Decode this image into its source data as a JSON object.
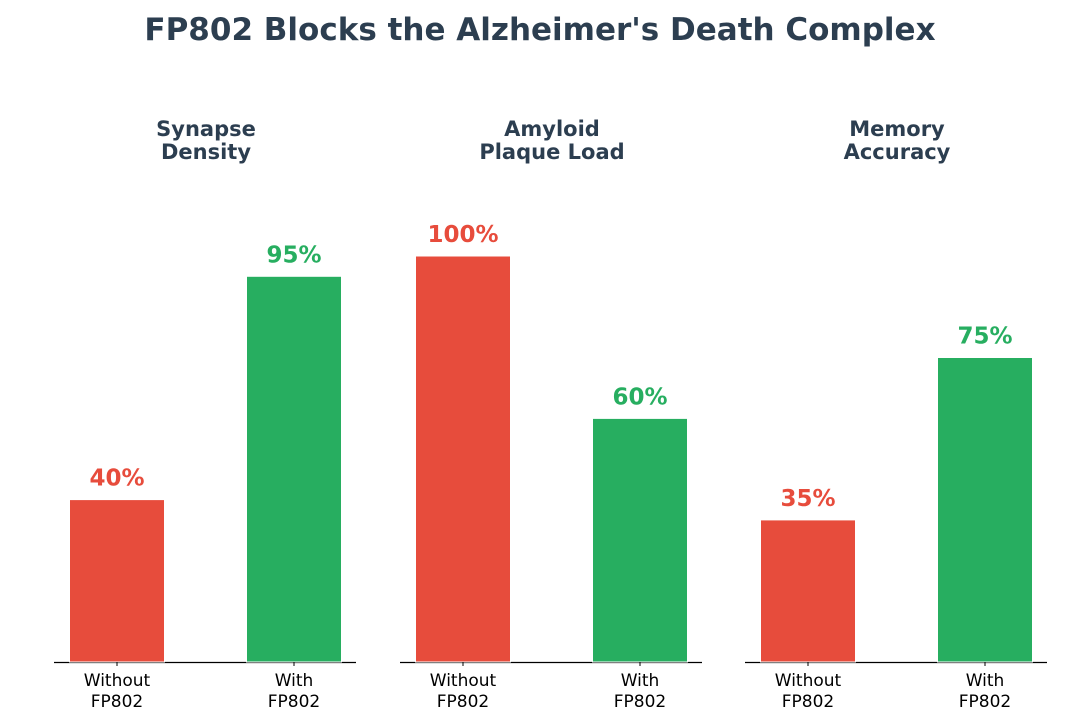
{
  "title": "FP802 Blocks the Alzheimer's Death Complex",
  "colors": {
    "without": "#e74c3c",
    "with": "#27ae60",
    "title": "#2c3e50",
    "axis": "#000000"
  },
  "chart_data": [
    {
      "type": "bar",
      "title": "Synapse\nDensity",
      "categories": [
        "Without\nFP802",
        "With\nFP802"
      ],
      "values": [
        40,
        95
      ],
      "value_labels": [
        "40%",
        "95%"
      ],
      "ylim": [
        0,
        100
      ],
      "xlabel": "",
      "ylabel": "",
      "grid": false
    },
    {
      "type": "bar",
      "title": "Amyloid\nPlaque Load",
      "categories": [
        "Without\nFP802",
        "With\nFP802"
      ],
      "values": [
        100,
        60
      ],
      "value_labels": [
        "100%",
        "60%"
      ],
      "ylim": [
        0,
        100
      ],
      "xlabel": "",
      "ylabel": "",
      "grid": false
    },
    {
      "type": "bar",
      "title": "Memory\nAccuracy",
      "categories": [
        "Without\nFP802",
        "With\nFP802"
      ],
      "values": [
        35,
        75
      ],
      "value_labels": [
        "35%",
        "75%"
      ],
      "ylim": [
        0,
        100
      ],
      "xlabel": "",
      "ylabel": "",
      "grid": false
    }
  ]
}
